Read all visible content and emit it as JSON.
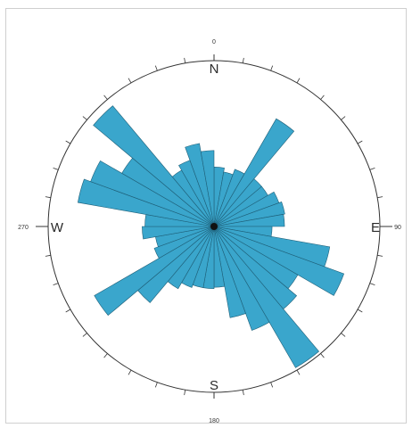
{
  "chart_data": {
    "type": "rose",
    "bin_width_deg": 10,
    "direction_labels": {
      "north": "N",
      "east": "E",
      "south": "S",
      "west": "W"
    },
    "degree_labels": {
      "north": "0",
      "east": "90",
      "south": "180",
      "west": "270"
    },
    "bins": [
      {
        "start": 0,
        "end": 10,
        "value": 0.43
      },
      {
        "start": 10,
        "end": 20,
        "value": 0.4
      },
      {
        "start": 20,
        "end": 30,
        "value": 0.44
      },
      {
        "start": 30,
        "end": 40,
        "value": 0.9
      },
      {
        "start": 40,
        "end": 50,
        "value": 0.45
      },
      {
        "start": 50,
        "end": 60,
        "value": 0.45
      },
      {
        "start": 60,
        "end": 70,
        "value": 0.5
      },
      {
        "start": 70,
        "end": 80,
        "value": 0.52
      },
      {
        "start": 80,
        "end": 90,
        "value": 0.51
      },
      {
        "start": 90,
        "end": 100,
        "value": 0.42
      },
      {
        "start": 100,
        "end": 110,
        "value": 0.85
      },
      {
        "start": 110,
        "end": 120,
        "value": 1.0
      },
      {
        "start": 120,
        "end": 130,
        "value": 0.7
      },
      {
        "start": 130,
        "end": 140,
        "value": 0.78
      },
      {
        "start": 140,
        "end": 150,
        "value": 1.18
      },
      {
        "start": 150,
        "end": 160,
        "value": 0.8
      },
      {
        "start": 160,
        "end": 170,
        "value": 0.67
      },
      {
        "start": 170,
        "end": 180,
        "value": 0.44
      },
      {
        "start": 180,
        "end": 190,
        "value": 0.45
      },
      {
        "start": 190,
        "end": 200,
        "value": 0.45
      },
      {
        "start": 200,
        "end": 210,
        "value": 0.47
      },
      {
        "start": 210,
        "end": 220,
        "value": 0.52
      },
      {
        "start": 220,
        "end": 230,
        "value": 0.72
      },
      {
        "start": 230,
        "end": 240,
        "value": 1.0
      },
      {
        "start": 240,
        "end": 250,
        "value": 0.46
      },
      {
        "start": 250,
        "end": 260,
        "value": 0.43
      },
      {
        "start": 260,
        "end": 270,
        "value": 0.52
      },
      {
        "start": 270,
        "end": 280,
        "value": 0.5
      },
      {
        "start": 280,
        "end": 290,
        "value": 1.0
      },
      {
        "start": 290,
        "end": 300,
        "value": 0.95
      },
      {
        "start": 300,
        "end": 310,
        "value": 0.77
      },
      {
        "start": 310,
        "end": 320,
        "value": 1.14
      },
      {
        "start": 320,
        "end": 330,
        "value": 0.47
      },
      {
        "start": 330,
        "end": 340,
        "value": 0.51
      },
      {
        "start": 340,
        "end": 350,
        "value": 0.61
      },
      {
        "start": 350,
        "end": 360,
        "value": 0.55
      }
    ],
    "max_value": 1.2,
    "colors": {
      "bar_fill": "#3aa6cc",
      "bar_stroke": "#1e5f78",
      "circle": "#333333"
    }
  }
}
